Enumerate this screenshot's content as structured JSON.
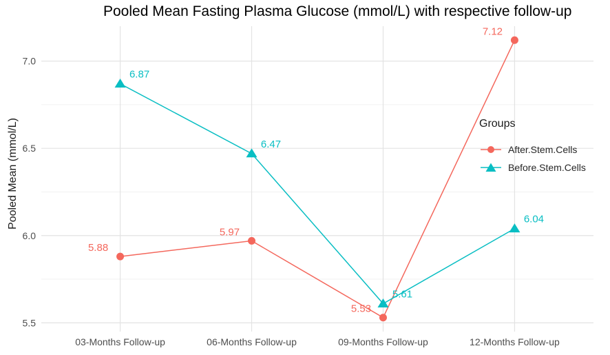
{
  "title": "Pooled Mean Fasting Plasma Glucose (mmol/L) with respective follow-up",
  "chart_data": {
    "type": "line",
    "categories": [
      "03-Months Follow-up",
      "06-Months Follow-up",
      "09-Months Follow-up",
      "12-Months Follow-up"
    ],
    "series": [
      {
        "name": "After.Stem.Cells",
        "values": [
          5.88,
          5.97,
          5.53,
          7.12
        ],
        "point_labels": [
          "5.88",
          "5.97",
          "5.53",
          "7.12"
        ],
        "color": "#F4675C",
        "marker": "circle",
        "label_dx": -32,
        "label_dy": -8
      },
      {
        "name": "Before.Stem.Cells",
        "values": [
          6.87,
          6.47,
          5.61,
          6.04
        ],
        "point_labels": [
          "6.87",
          "6.47",
          "5.61",
          "6.04"
        ],
        "color": "#09BEC3",
        "marker": "triangle",
        "label_dx": 28,
        "label_dy": -9
      }
    ],
    "xlabel": "",
    "ylabel": "Pooled Mean (mmol/L)",
    "ylim": [
      5.45,
      7.2
    ],
    "yticks": [
      "5.5",
      "6.0",
      "6.5",
      "7.0"
    ],
    "yticks_minor": [
      5.75,
      6.25,
      6.75
    ],
    "grid": true,
    "legend": {
      "title": "Groups",
      "position": "inside-right"
    }
  },
  "colors": {
    "background": "#ffffff",
    "grid_major": "#e3e3e3",
    "grid_minor": "#f0f0f0",
    "tick_label": "#4d4d4d",
    "axis_title": "#1a1a1a",
    "title": "#000000",
    "legend_text": "#262626"
  }
}
